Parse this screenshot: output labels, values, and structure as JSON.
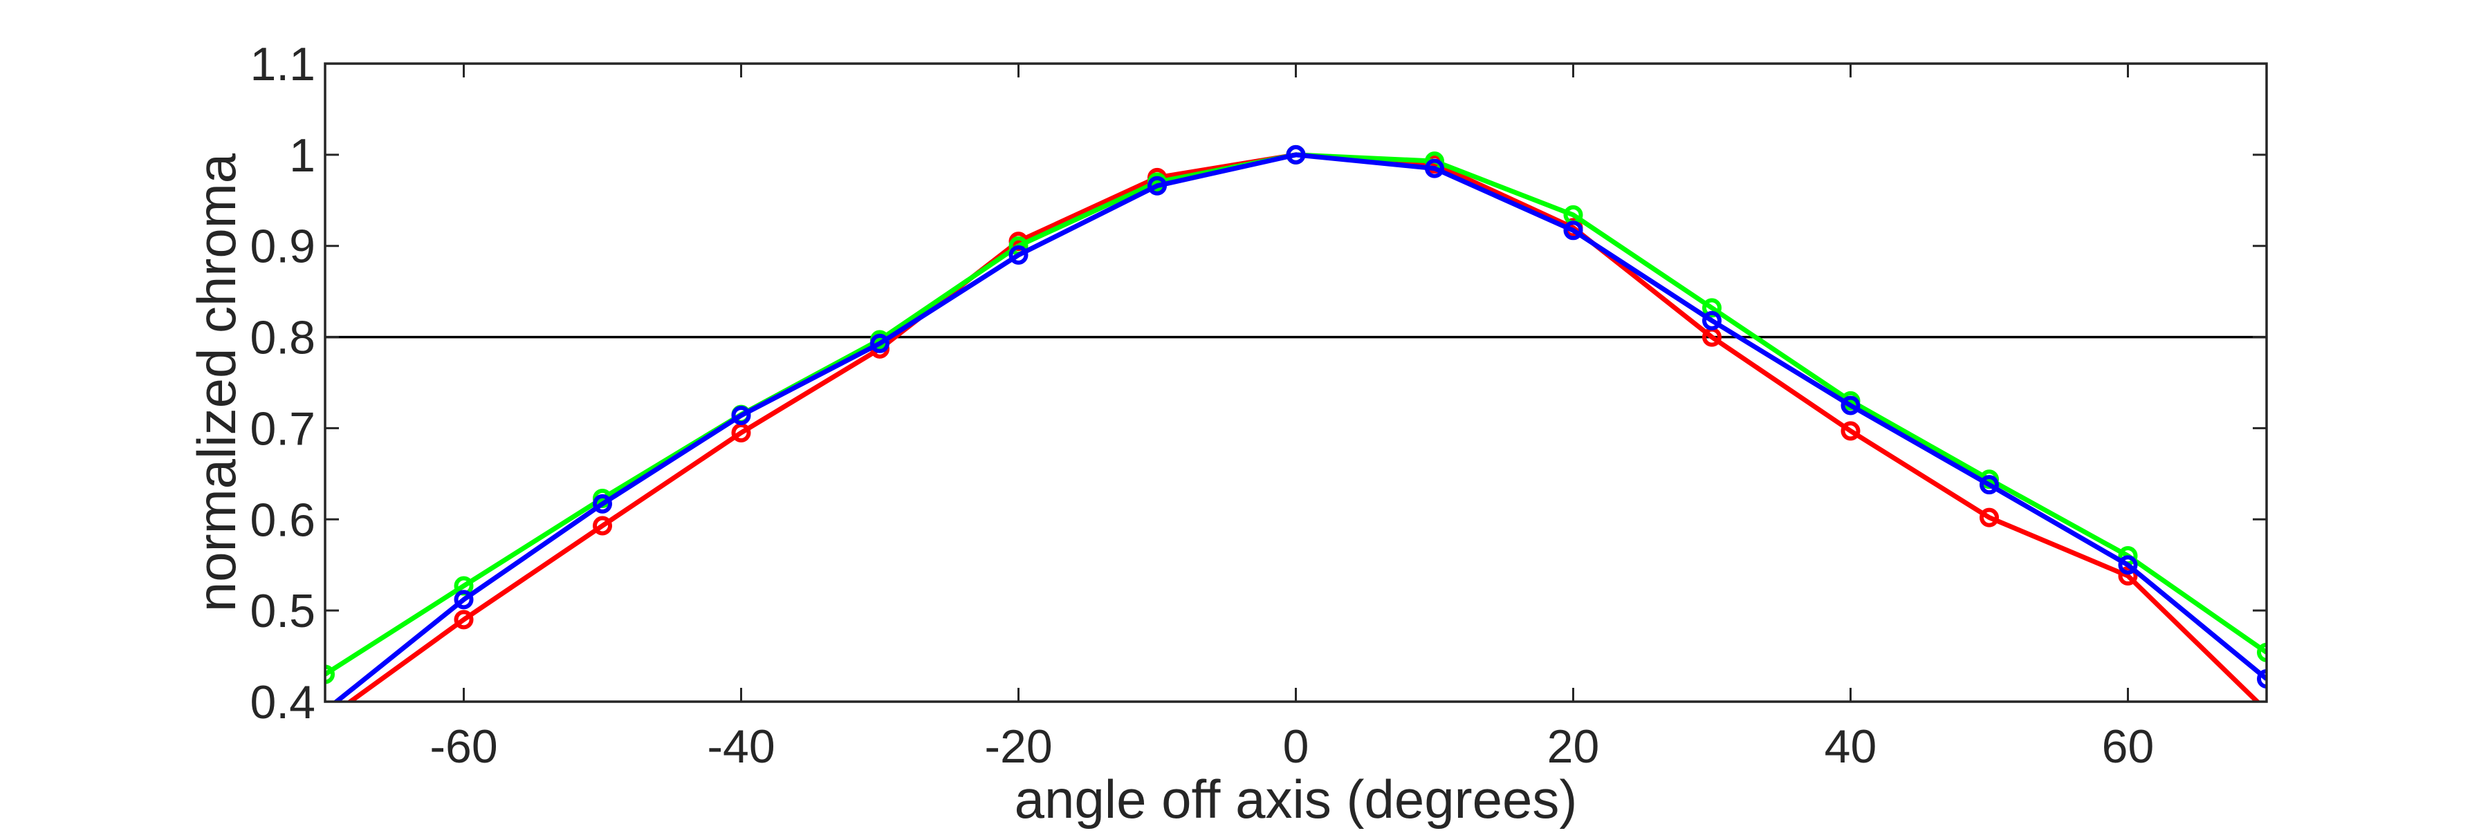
{
  "chart_data": {
    "type": "line",
    "xlabel": "angle off axis (degrees)",
    "ylabel": "normalized chroma",
    "xlim": [
      -70,
      70
    ],
    "ylim": [
      0.4,
      1.1
    ],
    "xticks": [
      -60,
      -40,
      -20,
      0,
      20,
      40,
      60
    ],
    "yticks": [
      0.4,
      0.5,
      0.6,
      0.7,
      0.8,
      0.9,
      1,
      1.1
    ],
    "x": [
      -70,
      -60,
      -50,
      -40,
      -30,
      -20,
      -10,
      0,
      10,
      20,
      30,
      40,
      50,
      60,
      70
    ],
    "reference_line": 0.8,
    "grid": false,
    "series": [
      {
        "color": "#ff0000",
        "values": [
          0.38,
          0.49,
          0.593,
          0.695,
          0.787,
          0.905,
          0.975,
          1.0,
          0.99,
          0.92,
          0.8,
          0.697,
          0.602,
          0.538,
          0.39
        ]
      },
      {
        "color": "#00ff00",
        "values": [
          0.43,
          0.527,
          0.623,
          0.715,
          0.797,
          0.9,
          0.97,
          1.0,
          0.993,
          0.934,
          0.832,
          0.73,
          0.644,
          0.56,
          0.454
        ]
      },
      {
        "color": "#0000ff",
        "values": [
          0.39,
          0.512,
          0.617,
          0.714,
          0.793,
          0.89,
          0.966,
          1.0,
          0.985,
          0.917,
          0.818,
          0.725,
          0.638,
          0.55,
          0.425
        ]
      }
    ]
  }
}
